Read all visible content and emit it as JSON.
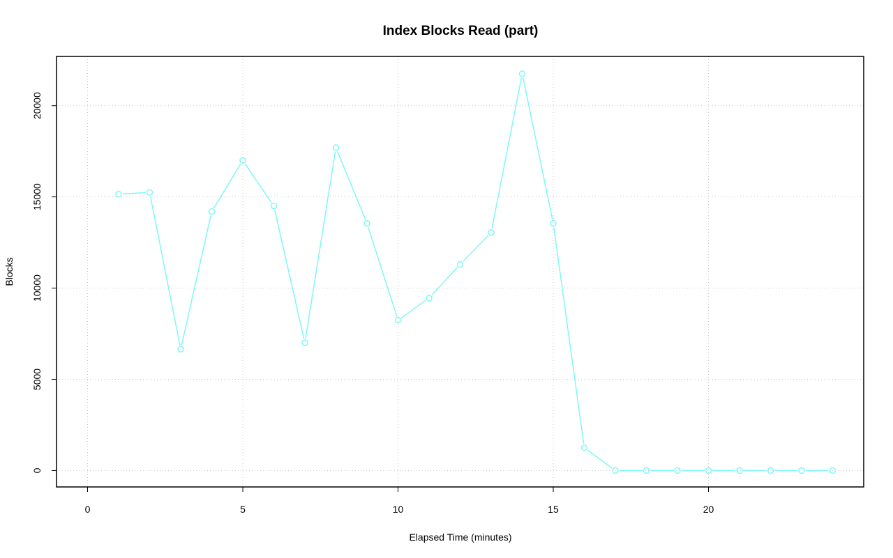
{
  "chart_data": {
    "type": "line",
    "title": "Index Blocks Read (part)",
    "xlabel": "Elapsed Time (minutes)",
    "ylabel": "Blocks",
    "xlim": [
      -1,
      25
    ],
    "ylim": [
      -900,
      22700
    ],
    "xticks": [
      0,
      5,
      10,
      15,
      20
    ],
    "yticks": [
      0,
      5000,
      10000,
      15000,
      20000
    ],
    "grid": true,
    "color": "#7ff7f7",
    "x": [
      1,
      2,
      3,
      4,
      5,
      6,
      7,
      8,
      9,
      10,
      11,
      12,
      13,
      14,
      15,
      16,
      17,
      18,
      19,
      20,
      21,
      22,
      23,
      24
    ],
    "values": [
      15150,
      15250,
      6650,
      14200,
      17000,
      14500,
      7000,
      17700,
      13550,
      8250,
      9450,
      11300,
      13050,
      21750,
      13550,
      1250,
      0,
      0,
      0,
      0,
      0,
      0,
      0,
      0
    ]
  }
}
